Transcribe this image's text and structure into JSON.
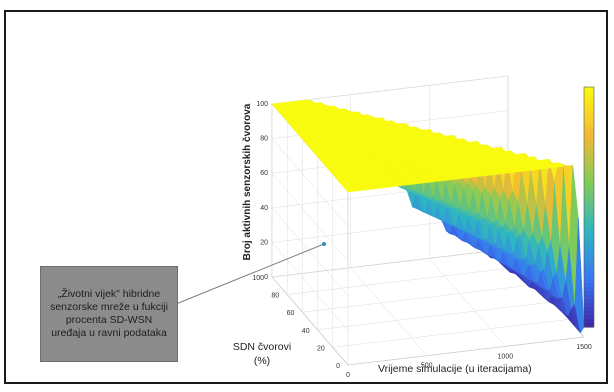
{
  "chart_data": {
    "type": "surface",
    "zlabel": "Broj aktivnih senzorskih čvorova",
    "xlabel": "Vrijeme simulacije (u iteracijama)",
    "ylabel_line1": "SDN čvorovi",
    "ylabel_line2": "(%)",
    "x_ticks": [
      "0",
      "500",
      "1000",
      "1500"
    ],
    "y_ticks": [
      "0",
      "20",
      "40",
      "60",
      "80",
      "100"
    ],
    "z_ticks": [
      "0",
      "20",
      "40",
      "60",
      "80",
      "100"
    ],
    "xlim": [
      0,
      1500
    ],
    "ylim": [
      0,
      100
    ],
    "zlim": [
      0,
      100
    ],
    "colormap": [
      "#3e26a8",
      "#3877f0",
      "#2db5c2",
      "#81cc59",
      "#f4b834",
      "#f9fb0e"
    ],
    "grid": true,
    "colorbar": true,
    "sdn_percent": [
      0,
      10,
      20,
      30,
      40,
      50,
      60,
      70,
      80,
      90,
      100
    ],
    "end_of_plateau_iteration": [
      1450,
      1320,
      1200,
      1080,
      960,
      840,
      720,
      600,
      480,
      360,
      240
    ],
    "first_death_iteration": [
      170,
      160,
      150,
      140,
      130,
      120,
      110,
      100,
      90,
      80,
      70
    ]
  },
  "annotation": {
    "text": "„Životni vijek\" hibridne senzorske mreže u fukciji procenta SD-WSN uređaja u ravni podataka"
  }
}
